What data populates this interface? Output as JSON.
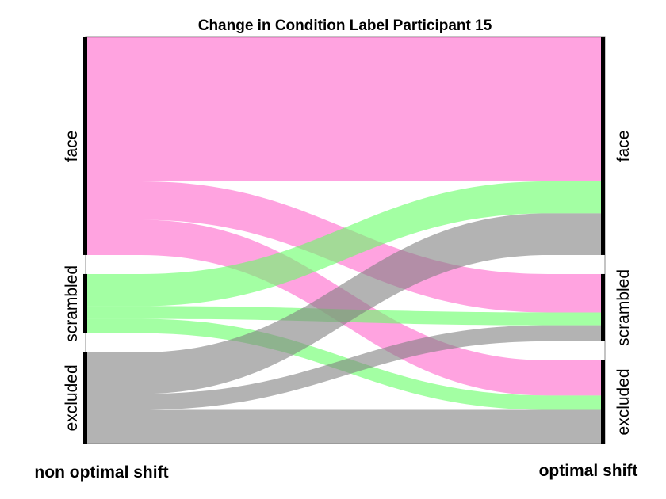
{
  "chart_data": {
    "type": "alluvial",
    "title": "Change in Condition Label Participant 15",
    "axes": [
      {
        "label": "non optimal shift",
        "categories": [
          "face",
          "scrambled",
          "excluded"
        ]
      },
      {
        "label": "optimal shift",
        "categories": [
          "face",
          "scrambled",
          "excluded"
        ]
      }
    ],
    "colors": {
      "face": "#ff66cc",
      "scrambled": "#66ff66",
      "excluded": "#808080"
    },
    "flows": [
      {
        "from": "face",
        "to": "face",
        "value": 90
      },
      {
        "from": "face",
        "to": "scrambled",
        "value": 24
      },
      {
        "from": "face",
        "to": "excluded",
        "value": 22
      },
      {
        "from": "scrambled",
        "to": "face",
        "value": 20
      },
      {
        "from": "scrambled",
        "to": "scrambled",
        "value": 8
      },
      {
        "from": "scrambled",
        "to": "excluded",
        "value": 9
      },
      {
        "from": "excluded",
        "to": "face",
        "value": 26
      },
      {
        "from": "excluded",
        "to": "scrambled",
        "value": 10
      },
      {
        "from": "excluded",
        "to": "excluded",
        "value": 21
      }
    ]
  }
}
